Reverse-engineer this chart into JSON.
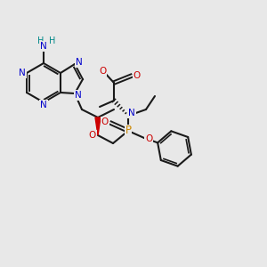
{
  "background_color": "#e8e8e8",
  "atom_colors": {
    "N": "#0000cc",
    "O": "#cc0000",
    "P": "#cc8800",
    "C": "#000000",
    "H": "#008888",
    "default": "#000000"
  },
  "bond_color": "#1a1a1a",
  "wedge_red": "#cc0000",
  "wedge_dark": "#333333",
  "figsize": [
    3.0,
    3.0
  ],
  "dpi": 100
}
